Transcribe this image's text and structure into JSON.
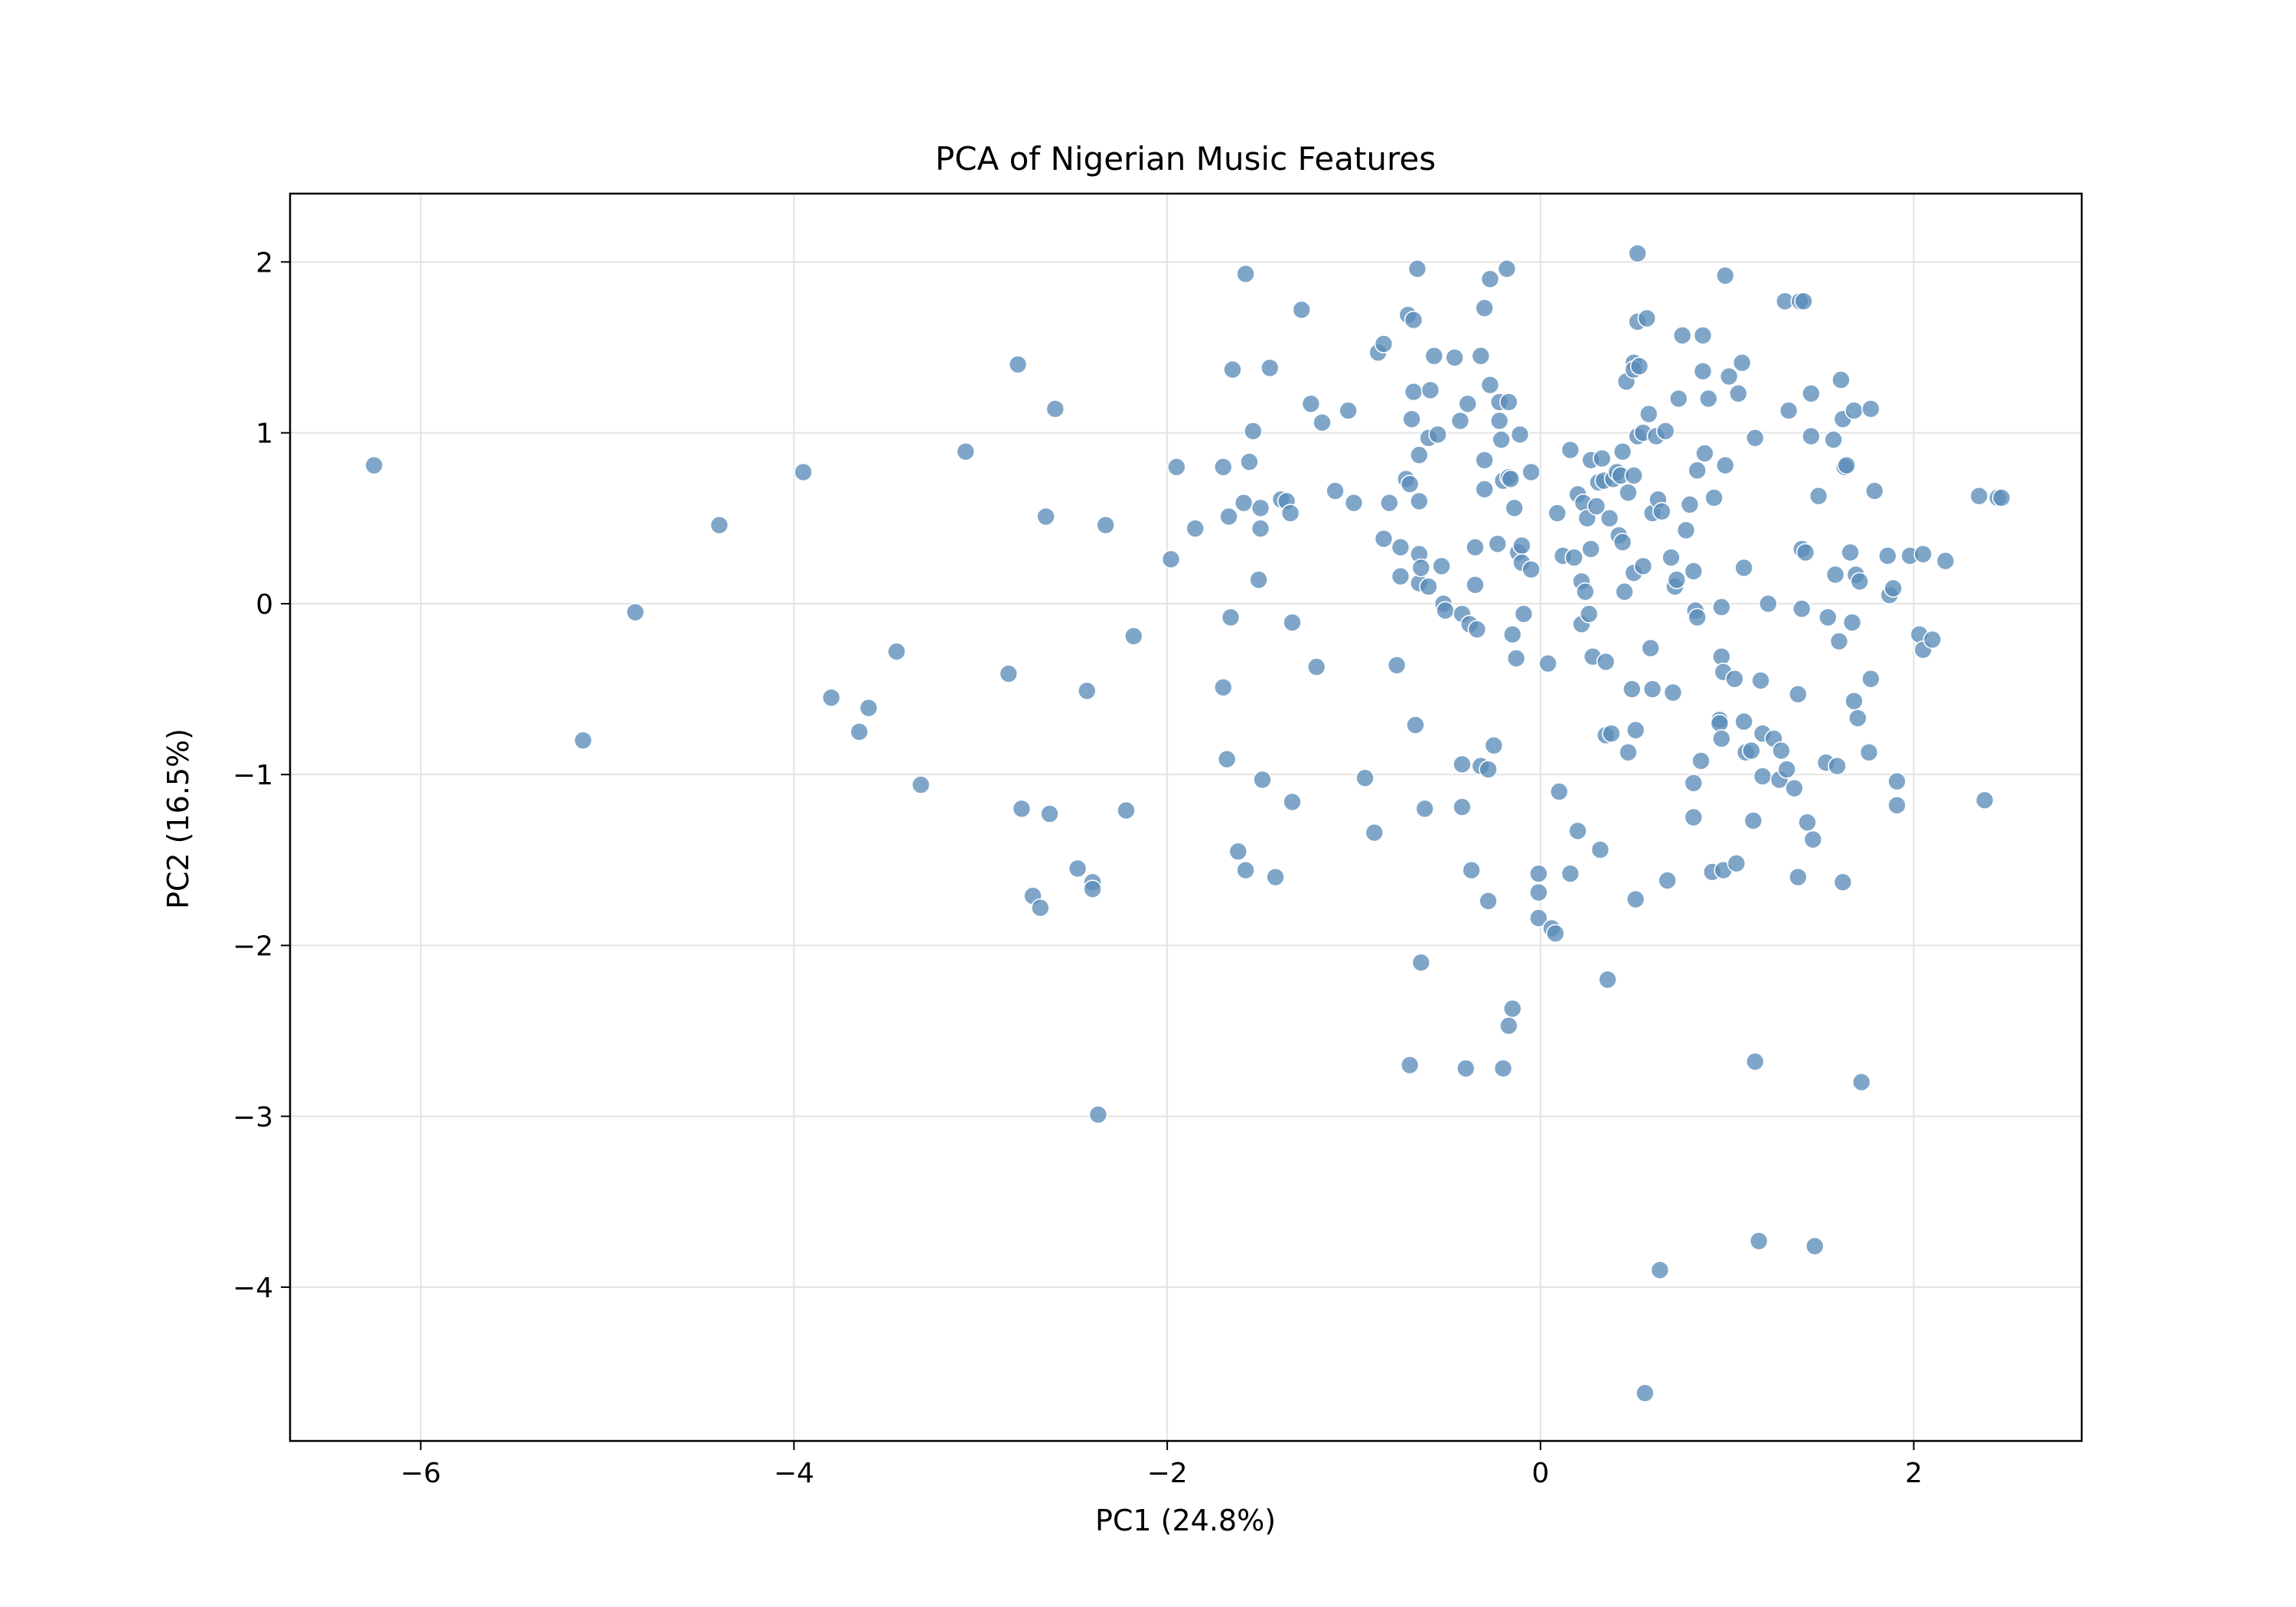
{
  "chart_data": {
    "type": "scatter",
    "title": "PCA of Nigerian Music Features",
    "xlabel": "PC1 (24.8%)",
    "ylabel": "PC2 (16.5%)",
    "xlim": [
      -6.7,
      2.9
    ],
    "ylim": [
      -4.9,
      2.4
    ],
    "xticks": [
      -6,
      -4,
      -2,
      0,
      2
    ],
    "yticks": [
      -4,
      -3,
      -2,
      -1,
      0,
      1,
      2
    ],
    "xtick_labels": [
      "−6",
      "−4",
      "−2",
      "0",
      "2"
    ],
    "ytick_labels": [
      "−4",
      "−3",
      "−2",
      "−1",
      "0",
      "1",
      "2"
    ],
    "grid": true,
    "legend": false,
    "colors": {
      "marker": "#5b8db8",
      "marker_edge": "#ffffff",
      "grid": "#e3e3e3",
      "frame": "#000000"
    },
    "points": [
      [
        -6.25,
        0.81
      ],
      [
        -5.13,
        -0.8
      ],
      [
        -4.85,
        -0.05
      ],
      [
        -4.4,
        0.46
      ],
      [
        -3.95,
        0.77
      ],
      [
        -3.8,
        -0.55
      ],
      [
        -3.65,
        -0.75
      ],
      [
        -3.6,
        -0.61
      ],
      [
        -3.45,
        -0.28
      ],
      [
        -3.32,
        -1.06
      ],
      [
        -3.08,
        0.89
      ],
      [
        -2.85,
        -0.41
      ],
      [
        -2.8,
        1.4
      ],
      [
        -2.78,
        -1.2
      ],
      [
        -2.72,
        -1.71
      ],
      [
        -2.68,
        -1.78
      ],
      [
        -2.65,
        0.51
      ],
      [
        -2.63,
        -1.23
      ],
      [
        -2.6,
        1.14
      ],
      [
        -2.48,
        -1.55
      ],
      [
        -2.43,
        -0.51
      ],
      [
        -2.4,
        -1.63
      ],
      [
        -2.4,
        -1.67
      ],
      [
        -2.37,
        -2.99
      ],
      [
        -2.33,
        0.46
      ],
      [
        -2.22,
        -1.21
      ],
      [
        -2.18,
        -0.19
      ],
      [
        -1.98,
        0.26
      ],
      [
        -1.95,
        0.8
      ],
      [
        -1.85,
        0.44
      ],
      [
        -1.7,
        0.8
      ],
      [
        -1.7,
        -0.49
      ],
      [
        -1.68,
        -0.91
      ],
      [
        -1.67,
        0.51
      ],
      [
        -1.66,
        -0.08
      ],
      [
        -1.65,
        1.37
      ],
      [
        -1.62,
        -1.45
      ],
      [
        -1.59,
        0.59
      ],
      [
        -1.58,
        1.93
      ],
      [
        -1.58,
        -1.56
      ],
      [
        -1.56,
        0.83
      ],
      [
        -1.54,
        1.01
      ],
      [
        -1.51,
        0.14
      ],
      [
        -1.5,
        0.56
      ],
      [
        -1.5,
        0.44
      ],
      [
        -1.49,
        -1.03
      ],
      [
        -1.45,
        1.38
      ],
      [
        -1.42,
        -1.6
      ],
      [
        -1.39,
        0.61
      ],
      [
        -1.36,
        0.6
      ],
      [
        -1.34,
        0.53
      ],
      [
        -1.33,
        -0.11
      ],
      [
        -1.33,
        -1.16
      ],
      [
        -1.28,
        1.72
      ],
      [
        -1.23,
        1.17
      ],
      [
        -1.2,
        -0.37
      ],
      [
        -1.17,
        1.06
      ],
      [
        -1.1,
        0.66
      ],
      [
        -1.03,
        1.13
      ],
      [
        -1.0,
        0.59
      ],
      [
        -0.94,
        -1.02
      ],
      [
        -0.89,
        -1.34
      ],
      [
        -0.87,
        1.47
      ],
      [
        -0.84,
        1.52
      ],
      [
        -0.84,
        0.38
      ],
      [
        -0.81,
        0.59
      ],
      [
        -0.77,
        -0.36
      ],
      [
        -0.75,
        0.16
      ],
      [
        -0.75,
        0.33
      ],
      [
        -0.72,
        0.73
      ],
      [
        -0.71,
        1.69
      ],
      [
        -0.7,
        0.7
      ],
      [
        -0.7,
        -2.7
      ],
      [
        -0.69,
        1.08
      ],
      [
        -0.68,
        1.24
      ],
      [
        -0.68,
        1.66
      ],
      [
        -0.67,
        -0.71
      ],
      [
        -0.66,
        1.96
      ],
      [
        -0.65,
        0.87
      ],
      [
        -0.65,
        0.6
      ],
      [
        -0.65,
        0.12
      ],
      [
        -0.65,
        0.29
      ],
      [
        -0.64,
        0.21
      ],
      [
        -0.64,
        -2.1
      ],
      [
        -0.62,
        -1.2
      ],
      [
        -0.6,
        0.97
      ],
      [
        -0.6,
        0.1
      ],
      [
        -0.59,
        1.25
      ],
      [
        -0.57,
        1.45
      ],
      [
        -0.55,
        0.99
      ],
      [
        -0.53,
        0.22
      ],
      [
        -0.52,
        0.0
      ],
      [
        -0.51,
        -0.04
      ],
      [
        -0.46,
        1.44
      ],
      [
        -0.43,
        1.07
      ],
      [
        -0.42,
        -0.06
      ],
      [
        -0.42,
        -0.94
      ],
      [
        -0.42,
        -1.19
      ],
      [
        -0.4,
        -2.72
      ],
      [
        -0.39,
        1.17
      ],
      [
        -0.38,
        -0.12
      ],
      [
        -0.37,
        -1.56
      ],
      [
        -0.35,
        0.11
      ],
      [
        -0.35,
        0.33
      ],
      [
        -0.34,
        -0.15
      ],
      [
        -0.32,
        -0.95
      ],
      [
        -0.32,
        1.45
      ],
      [
        -0.3,
        1.73
      ],
      [
        -0.3,
        0.67
      ],
      [
        -0.3,
        0.84
      ],
      [
        -0.28,
        -0.97
      ],
      [
        -0.28,
        -1.74
      ],
      [
        -0.27,
        1.9
      ],
      [
        -0.27,
        1.28
      ],
      [
        -0.25,
        -0.83
      ],
      [
        -0.23,
        0.35
      ],
      [
        -0.22,
        1.07
      ],
      [
        -0.22,
        1.18
      ],
      [
        -0.21,
        0.96
      ],
      [
        -0.2,
        0.72
      ],
      [
        -0.2,
        -2.72
      ],
      [
        -0.18,
        1.96
      ],
      [
        -0.17,
        1.18
      ],
      [
        -0.17,
        0.74
      ],
      [
        -0.17,
        -2.47
      ],
      [
        -0.16,
        0.73
      ],
      [
        -0.15,
        -0.18
      ],
      [
        -0.15,
        -2.37
      ],
      [
        -0.14,
        0.56
      ],
      [
        -0.13,
        -0.32
      ],
      [
        -0.12,
        0.3
      ],
      [
        -0.11,
        0.99
      ],
      [
        -0.1,
        0.34
      ],
      [
        -0.1,
        0.24
      ],
      [
        -0.09,
        -0.06
      ],
      [
        -0.05,
        0.77
      ],
      [
        -0.05,
        0.2
      ],
      [
        -0.01,
        -1.69
      ],
      [
        -0.01,
        -1.58
      ],
      [
        -0.01,
        -1.84
      ],
      [
        0.04,
        -0.35
      ],
      [
        0.06,
        -1.9
      ],
      [
        0.08,
        -1.93
      ],
      [
        0.09,
        0.53
      ],
      [
        0.1,
        -1.1
      ],
      [
        0.12,
        0.28
      ],
      [
        0.16,
        0.9
      ],
      [
        0.16,
        -1.58
      ],
      [
        0.18,
        0.27
      ],
      [
        0.2,
        -1.33
      ],
      [
        0.2,
        0.64
      ],
      [
        0.22,
        0.13
      ],
      [
        0.22,
        -0.12
      ],
      [
        0.23,
        0.59
      ],
      [
        0.24,
        0.07
      ],
      [
        0.25,
        0.5
      ],
      [
        0.26,
        -0.06
      ],
      [
        0.27,
        0.32
      ],
      [
        0.27,
        0.84
      ],
      [
        0.28,
        -0.31
      ],
      [
        0.3,
        0.57
      ],
      [
        0.31,
        0.71
      ],
      [
        0.32,
        -1.44
      ],
      [
        0.33,
        0.85
      ],
      [
        0.34,
        0.72
      ],
      [
        0.35,
        -0.34
      ],
      [
        0.35,
        -0.77
      ],
      [
        0.36,
        -2.2
      ],
      [
        0.37,
        0.5
      ],
      [
        0.38,
        -0.76
      ],
      [
        0.39,
        0.73
      ],
      [
        0.41,
        0.77
      ],
      [
        0.42,
        0.4
      ],
      [
        0.43,
        0.75
      ],
      [
        0.44,
        0.36
      ],
      [
        0.44,
        0.89
      ],
      [
        0.45,
        0.07
      ],
      [
        0.46,
        1.3
      ],
      [
        0.47,
        -0.87
      ],
      [
        0.47,
        0.65
      ],
      [
        0.49,
        -0.5
      ],
      [
        0.5,
        0.75
      ],
      [
        0.5,
        1.41
      ],
      [
        0.5,
        1.37
      ],
      [
        0.5,
        0.18
      ],
      [
        0.51,
        -0.74
      ],
      [
        0.51,
        -1.73
      ],
      [
        0.52,
        1.65
      ],
      [
        0.52,
        2.05
      ],
      [
        0.52,
        0.98
      ],
      [
        0.53,
        1.39
      ],
      [
        0.55,
        1.0
      ],
      [
        0.55,
        0.22
      ],
      [
        0.56,
        -4.62
      ],
      [
        0.57,
        1.67
      ],
      [
        0.58,
        1.11
      ],
      [
        0.59,
        -0.26
      ],
      [
        0.6,
        0.53
      ],
      [
        0.6,
        -0.5
      ],
      [
        0.62,
        0.98
      ],
      [
        0.63,
        0.61
      ],
      [
        0.64,
        -3.9
      ],
      [
        0.65,
        0.54
      ],
      [
        0.67,
        1.01
      ],
      [
        0.68,
        -1.62
      ],
      [
        0.7,
        0.27
      ],
      [
        0.71,
        -0.52
      ],
      [
        0.72,
        0.1
      ],
      [
        0.73,
        0.14
      ],
      [
        0.74,
        1.2
      ],
      [
        0.76,
        1.57
      ],
      [
        0.78,
        0.43
      ],
      [
        0.8,
        0.58
      ],
      [
        0.82,
        0.19
      ],
      [
        0.82,
        -1.05
      ],
      [
        0.82,
        -1.25
      ],
      [
        0.83,
        -0.04
      ],
      [
        0.84,
        -0.08
      ],
      [
        0.84,
        0.78
      ],
      [
        0.86,
        -0.92
      ],
      [
        0.87,
        1.57
      ],
      [
        0.87,
        1.36
      ],
      [
        0.88,
        0.88
      ],
      [
        0.9,
        1.2
      ],
      [
        0.92,
        -1.57
      ],
      [
        0.93,
        0.62
      ],
      [
        0.96,
        -0.68
      ],
      [
        0.96,
        -0.7
      ],
      [
        0.97,
        -0.79
      ],
      [
        0.97,
        -0.02
      ],
      [
        0.97,
        -0.31
      ],
      [
        0.98,
        -1.56
      ],
      [
        0.98,
        -0.4
      ],
      [
        0.99,
        0.81
      ],
      [
        0.99,
        1.92
      ],
      [
        1.01,
        1.33
      ],
      [
        1.04,
        -0.44
      ],
      [
        1.05,
        -1.52
      ],
      [
        1.06,
        1.23
      ],
      [
        1.08,
        1.41
      ],
      [
        1.09,
        -0.69
      ],
      [
        1.09,
        0.21
      ],
      [
        1.1,
        -0.87
      ],
      [
        1.13,
        -0.86
      ],
      [
        1.14,
        -1.27
      ],
      [
        1.15,
        0.97
      ],
      [
        1.15,
        -2.68
      ],
      [
        1.17,
        -3.73
      ],
      [
        1.18,
        -0.45
      ],
      [
        1.19,
        -1.01
      ],
      [
        1.19,
        -0.76
      ],
      [
        1.22,
        0.0
      ],
      [
        1.25,
        -0.79
      ],
      [
        1.28,
        -1.03
      ],
      [
        1.29,
        -0.86
      ],
      [
        1.31,
        1.77
      ],
      [
        1.32,
        -0.97
      ],
      [
        1.33,
        1.13
      ],
      [
        1.36,
        -1.08
      ],
      [
        1.38,
        -0.53
      ],
      [
        1.38,
        -1.6
      ],
      [
        1.39,
        1.77
      ],
      [
        1.4,
        -0.03
      ],
      [
        1.4,
        0.32
      ],
      [
        1.41,
        1.77
      ],
      [
        1.42,
        0.3
      ],
      [
        1.43,
        -1.28
      ],
      [
        1.45,
        1.23
      ],
      [
        1.45,
        0.98
      ],
      [
        1.46,
        -1.38
      ],
      [
        1.47,
        -3.76
      ],
      [
        1.49,
        0.63
      ],
      [
        1.53,
        -0.93
      ],
      [
        1.54,
        -0.08
      ],
      [
        1.57,
        0.96
      ],
      [
        1.58,
        0.17
      ],
      [
        1.59,
        -0.95
      ],
      [
        1.6,
        -0.22
      ],
      [
        1.61,
        1.31
      ],
      [
        1.62,
        1.08
      ],
      [
        1.62,
        -1.63
      ],
      [
        1.63,
        0.8
      ],
      [
        1.64,
        0.81
      ],
      [
        1.66,
        0.3
      ],
      [
        1.67,
        -0.11
      ],
      [
        1.68,
        1.13
      ],
      [
        1.68,
        -0.57
      ],
      [
        1.69,
        0.17
      ],
      [
        1.7,
        -0.67
      ],
      [
        1.71,
        0.13
      ],
      [
        1.72,
        -2.8
      ],
      [
        1.76,
        -0.87
      ],
      [
        1.77,
        -0.44
      ],
      [
        1.77,
        1.14
      ],
      [
        1.79,
        0.66
      ],
      [
        1.86,
        0.28
      ],
      [
        1.87,
        0.05
      ],
      [
        1.89,
        0.09
      ],
      [
        1.91,
        -1.04
      ],
      [
        1.91,
        -1.18
      ],
      [
        1.98,
        0.28
      ],
      [
        2.03,
        -0.18
      ],
      [
        2.05,
        0.29
      ],
      [
        2.05,
        -0.27
      ],
      [
        2.1,
        -0.21
      ],
      [
        2.17,
        0.25
      ],
      [
        2.35,
        0.63
      ],
      [
        2.38,
        -1.15
      ],
      [
        2.45,
        0.62
      ],
      [
        2.47,
        0.62
      ]
    ]
  }
}
